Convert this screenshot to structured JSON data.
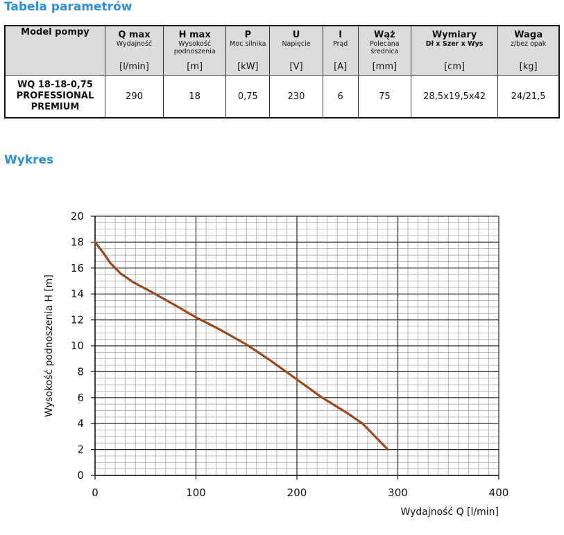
{
  "headings": {
    "params_title": "Tabela parametrów",
    "chart_title": "Wykres"
  },
  "table": {
    "columns": [
      {
        "name": "Model pompy",
        "desc": "",
        "unit": ""
      },
      {
        "name": "Q max",
        "desc": "Wydajność",
        "unit": "[l/min]"
      },
      {
        "name": "H max",
        "desc": "Wysokość podnoszenia",
        "unit": "[m]"
      },
      {
        "name": "P",
        "desc": "Moc silnika",
        "unit": "[kW]"
      },
      {
        "name": "U",
        "desc": "Napięcie",
        "unit": "[V]"
      },
      {
        "name": "I",
        "desc": "Prąd",
        "unit": "[A]"
      },
      {
        "name": "Wąż",
        "desc": "Polecana średnica",
        "unit": "[mm]"
      },
      {
        "name": "Wymiary",
        "desc": "Dł x Szer x Wys",
        "unit": "[cm]"
      },
      {
        "name": "Waga",
        "desc": "z/bez opak",
        "unit": "[kg]"
      }
    ],
    "row": {
      "model": "WQ 18-18-0,75 PROFESSIONAL PREMIUM",
      "q_max": "290",
      "h_max": "18",
      "power": "0,75",
      "voltage": "230",
      "current": "6",
      "hose": "75",
      "dimensions": "28,5x19,5x42",
      "weight": "24/21,5"
    }
  },
  "chart_data": {
    "type": "line",
    "title": "",
    "xlabel": "Wydajność Q [l/min]",
    "ylabel": "Wysokość podnoszenia H [m]",
    "xlim": [
      0,
      400
    ],
    "ylim": [
      0,
      20
    ],
    "xticks": [
      0,
      100,
      200,
      300,
      400
    ],
    "yticks": [
      0,
      2,
      4,
      6,
      8,
      10,
      12,
      14,
      16,
      18,
      20
    ],
    "grid": true,
    "series": [
      {
        "name": "WQ 18-18-0,75",
        "color": "#9b4a1e",
        "x": [
          0,
          8,
          15,
          25,
          38,
          55,
          80,
          100,
          125,
          150,
          175,
          200,
          225,
          250,
          265,
          290
        ],
        "y": [
          18,
          17.2,
          16.4,
          15.6,
          14.9,
          14.2,
          13.1,
          12.2,
          11.2,
          10.1,
          8.8,
          7.4,
          6.0,
          4.8,
          4.0,
          2.0
        ]
      }
    ]
  }
}
